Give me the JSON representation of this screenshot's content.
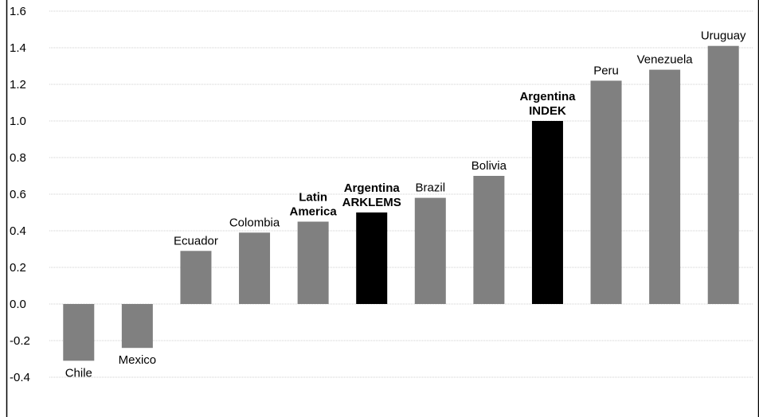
{
  "chart_data": {
    "type": "bar",
    "title": "",
    "xlabel": "",
    "ylabel": "",
    "ylim": [
      -0.6,
      1.6
    ],
    "yticks": [
      "1.6",
      "1.4",
      "1.2",
      "1.0",
      "0.8",
      "0.6",
      "0.4",
      "0.2",
      "0.0",
      "-0.2",
      "-0.4"
    ],
    "grid": true,
    "categories": [
      "Chile",
      "Mexico",
      "Ecuador",
      "Colombia",
      "Latin America",
      "Argentina ARKLEMS",
      "Brazil",
      "Bolivia",
      "Argentina INDEK",
      "Peru",
      "Venezuela",
      "Uruguay"
    ],
    "label_lines": [
      [
        "Chile"
      ],
      [
        "Mexico"
      ],
      [
        "Ecuador"
      ],
      [
        "Colombia"
      ],
      [
        "Latin",
        "America"
      ],
      [
        "Argentina",
        "ARKLEMS"
      ],
      [
        "Brazil"
      ],
      [
        "Bolivia"
      ],
      [
        "Argentina",
        "INDEK"
      ],
      [
        "Peru"
      ],
      [
        "Venezuela"
      ],
      [
        "Uruguay"
      ]
    ],
    "values": [
      -0.31,
      -0.24,
      0.29,
      0.39,
      0.45,
      0.5,
      0.58,
      0.7,
      1.0,
      1.22,
      1.28,
      1.41
    ],
    "highlighted": [
      false,
      false,
      false,
      false,
      false,
      true,
      false,
      false,
      true,
      false,
      false,
      false
    ],
    "bold_labels": [
      false,
      false,
      false,
      false,
      true,
      true,
      false,
      false,
      true,
      false,
      false,
      false
    ],
    "colors": {
      "bar": "#808080",
      "highlight": "#000000",
      "grid": "#cfcfcf",
      "frame": "#000000"
    }
  }
}
